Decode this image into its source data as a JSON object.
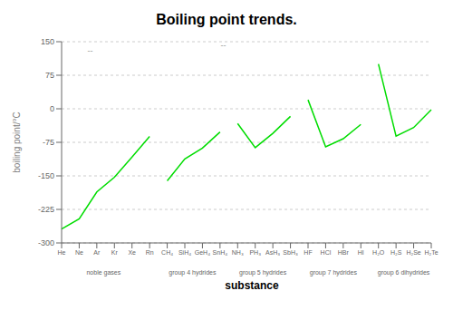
{
  "chart_data": {
    "type": "line",
    "title": "Boiling point trends.",
    "xlabel": "substance",
    "ylabel": "boiling point/°C",
    "categories": [
      "He",
      "Ne",
      "Ar",
      "Kr",
      "Xe",
      "Rn",
      "CH₄",
      "SiH₄",
      "GeH₄",
      "SnH₄",
      "NH₃",
      "PH₃",
      "AsH₃",
      "SbH₃",
      "HF",
      "HCl",
      "HBr",
      "HI",
      "H₂O",
      "H₂S",
      "H₂Se",
      "H₂Te"
    ],
    "series": [
      {
        "name": "noble gases",
        "color": "#00dd00",
        "values": [
          -269,
          -246,
          -186,
          -153,
          -108,
          -62,
          null,
          null,
          null,
          null,
          null,
          null,
          null,
          null,
          null,
          null,
          null,
          null,
          null,
          null,
          null,
          null
        ]
      },
      {
        "name": "group 4 hydrides",
        "color": "#00dd00",
        "values": [
          null,
          null,
          null,
          null,
          null,
          null,
          -161,
          -112,
          -88,
          -52,
          null,
          null,
          null,
          null,
          null,
          null,
          null,
          null,
          null,
          null,
          null,
          null
        ]
      },
      {
        "name": "group 5 hydrides",
        "color": "#00dd00",
        "values": [
          null,
          null,
          null,
          null,
          null,
          null,
          null,
          null,
          null,
          null,
          -33,
          -87,
          -55,
          -17,
          null,
          null,
          null,
          null,
          null,
          null,
          null,
          null
        ]
      },
      {
        "name": "group 7 hydrides",
        "color": "#00dd00",
        "values": [
          null,
          null,
          null,
          null,
          null,
          null,
          null,
          null,
          null,
          null,
          null,
          null,
          null,
          null,
          20,
          -85,
          -67,
          -35,
          null,
          null,
          null,
          null
        ]
      },
      {
        "name": "group 6 dihydrides",
        "color": "#00dd00",
        "values": [
          null,
          null,
          null,
          null,
          null,
          null,
          null,
          null,
          null,
          null,
          null,
          null,
          null,
          null,
          null,
          null,
          null,
          null,
          100,
          -61,
          -42,
          -2
        ]
      }
    ],
    "ylim": [
      -300,
      150
    ],
    "yticks": [
      -300,
      -225,
      -150,
      -75,
      0,
      75,
      150
    ],
    "grid": true,
    "annotations": [
      "--",
      "--"
    ]
  }
}
